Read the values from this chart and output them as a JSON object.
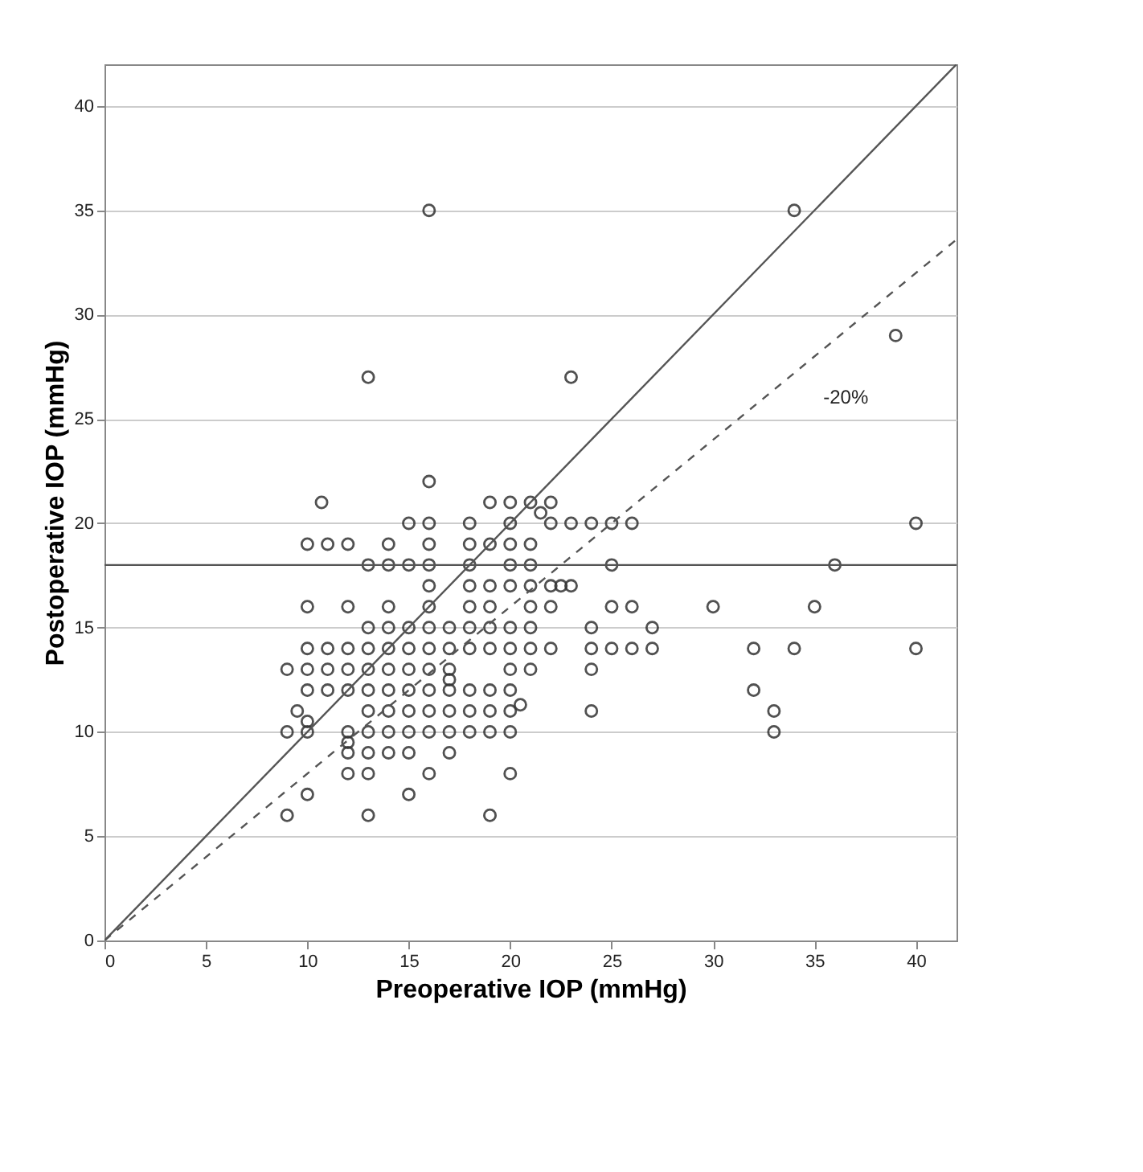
{
  "chart_data": {
    "type": "scatter",
    "xlabel": "Preoperative IOP (mmHg)",
    "ylabel": "Postoperative IOP (mmHg)",
    "xlim": [
      0,
      42
    ],
    "ylim": [
      0,
      42
    ],
    "xticks": [
      0,
      5,
      10,
      15,
      20,
      25,
      30,
      35,
      40
    ],
    "yticks": [
      0,
      5,
      10,
      15,
      20,
      25,
      30,
      35,
      40
    ],
    "grid": "y",
    "marker": "circle",
    "series": [
      {
        "color": "#333333",
        "x": [
          9,
          9,
          9,
          9.5,
          10,
          10,
          10,
          10,
          10,
          10,
          10,
          10,
          10.7,
          11,
          11,
          11,
          11,
          12,
          12,
          12,
          12,
          12,
          12,
          12,
          12,
          12,
          13,
          13,
          13,
          13,
          13,
          13,
          13,
          13,
          13,
          13,
          13,
          14,
          14,
          14,
          14,
          14,
          14,
          14,
          14,
          14,
          14,
          15,
          15,
          15,
          15,
          15,
          15,
          15,
          15,
          15,
          15,
          16,
          16,
          16,
          16,
          16,
          16,
          16,
          16,
          16,
          16,
          16,
          16,
          16,
          16,
          17,
          17,
          17,
          17,
          17,
          17,
          17,
          17,
          18,
          18,
          18,
          18,
          18,
          18,
          18,
          18,
          18,
          18,
          19,
          19,
          19,
          19,
          19,
          19,
          19,
          19,
          19,
          19,
          20,
          20,
          20,
          20,
          20,
          20,
          20,
          20,
          20,
          20,
          20,
          20,
          20.5,
          21,
          21,
          21,
          21,
          21,
          21,
          21,
          21,
          21.5,
          22,
          22,
          22,
          22,
          22,
          22.5,
          23,
          23,
          23,
          24,
          24,
          24,
          24,
          24,
          25,
          25,
          25,
          25,
          26,
          26,
          26,
          27,
          27,
          30,
          32,
          32,
          33,
          33,
          34,
          34,
          35,
          36,
          39,
          40,
          40
        ],
        "values": [
          13,
          10,
          6,
          11,
          19,
          16,
          14,
          13,
          12,
          10.5,
          10,
          7,
          21,
          19,
          14,
          13,
          12,
          19,
          16,
          14,
          13,
          12,
          10,
          9.5,
          9,
          8,
          27,
          18,
          15,
          14,
          13,
          12,
          11,
          10,
          9,
          8,
          6,
          19,
          18,
          16,
          15,
          14,
          13,
          12,
          11,
          10,
          9,
          20,
          18,
          15,
          14,
          13,
          12,
          11,
          10,
          9,
          7,
          35,
          22,
          20,
          19,
          18,
          17,
          16,
          15,
          14,
          13,
          12,
          11,
          10,
          8,
          15,
          14,
          13,
          12.5,
          12,
          11,
          10,
          9,
          20,
          19,
          18,
          17,
          16,
          15,
          14,
          12,
          11,
          10,
          21,
          19,
          17,
          16,
          15,
          14,
          12,
          11,
          10,
          6,
          21,
          20,
          19,
          18,
          17,
          15,
          14,
          13,
          12,
          11,
          10,
          8,
          11.3,
          21,
          19,
          18,
          17,
          16,
          15,
          14,
          13,
          20.5,
          21,
          20,
          17,
          16,
          14,
          17,
          27,
          20,
          17,
          20,
          15,
          14,
          13,
          11,
          20,
          18,
          16,
          14,
          20,
          16,
          14,
          15,
          14,
          16,
          14,
          12,
          11,
          10,
          35,
          14,
          16,
          18,
          29,
          20,
          14
        ]
      },
      {
        "type": "line",
        "marker": "none",
        "color": "#555555",
        "line_style": "solid",
        "x": [
          0,
          42
        ],
        "values": [
          0,
          42
        ]
      },
      {
        "type": "line",
        "marker": "none",
        "color": "#555555",
        "line_style": "dashed",
        "x": [
          0,
          42
        ],
        "values": [
          0,
          33.6
        ]
      }
    ],
    "ref_lines": [
      {
        "axis": "y",
        "value": 18,
        "color": "#555555"
      }
    ],
    "annotations": [
      "-20%"
    ]
  }
}
